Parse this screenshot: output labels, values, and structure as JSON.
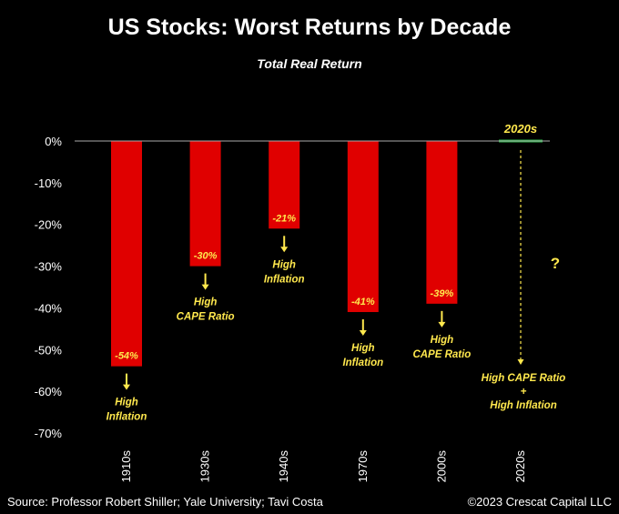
{
  "chart_data": {
    "type": "bar",
    "title": "US Stocks: Worst Returns by Decade",
    "subtitle": "Total Real Return",
    "categories": [
      "1910s",
      "1930s",
      "1940s",
      "1970s",
      "2000s",
      "2020s"
    ],
    "values": [
      -54,
      -30,
      -21,
      -41,
      -39,
      null
    ],
    "data_labels": [
      "-54%",
      "-30%",
      "-21%",
      "-41%",
      "-39%",
      ""
    ],
    "annotations": [
      [
        "High",
        "Inflation"
      ],
      [
        "High",
        "CAPE Ratio"
      ],
      [
        "High",
        "Inflation"
      ],
      [
        "High",
        "Inflation"
      ],
      [
        "High",
        "CAPE Ratio"
      ],
      [
        "High CAPE Ratio",
        "+",
        "High Inflation"
      ]
    ],
    "highlight_label": "2020s",
    "question_mark": "?",
    "ylim": [
      -70,
      0
    ],
    "yticks": [
      0,
      -10,
      -20,
      -30,
      -40,
      -50,
      -60,
      -70
    ],
    "ytick_labels": [
      "0%",
      "-10%",
      "-20%",
      "-30%",
      "-40%",
      "-50%",
      "-60%",
      "-70%"
    ],
    "grid": false,
    "colors": {
      "bar": "#e00000",
      "bar_label": "#ffe84d",
      "annotation": "#ffe84d",
      "arrow": "#ffe84d",
      "highlight_line": "#2bb34a",
      "axis": "#aaaaaa"
    }
  },
  "footer": {
    "source": "Source: Professor Robert Shiller; Yale University; Tavi Costa",
    "copyright": "©2023 Crescat Capital LLC"
  }
}
